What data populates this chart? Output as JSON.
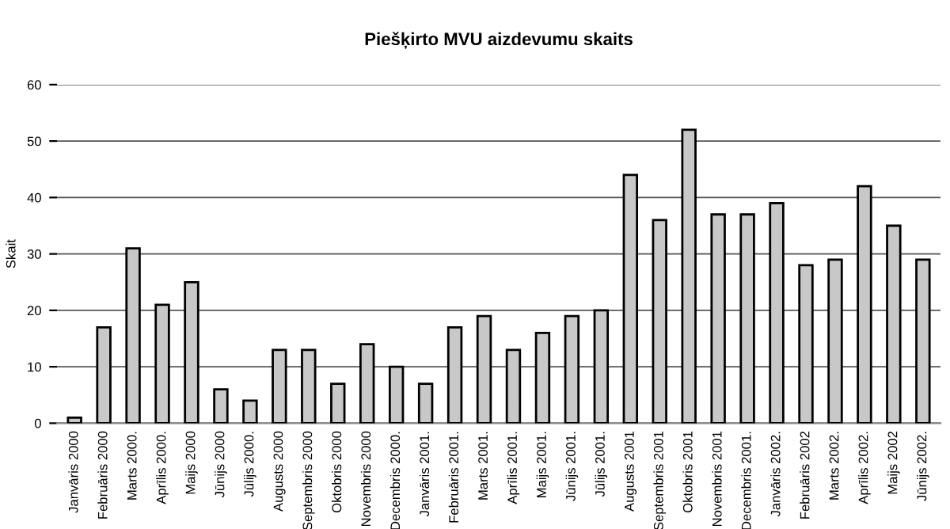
{
  "chart_data": {
    "type": "bar",
    "title": "Piešķirto MVU aizdevumu skaits",
    "ylabel": "Skait",
    "categories": [
      "Janvāris 2000",
      "Februāris 2000",
      "Marts 2000.",
      "Aprīlis 2000.",
      "Maijs 2000",
      "Jūnijs 2000",
      "Jūlijs 2000.",
      "Augusts 2000",
      "Septembris 2000",
      "Oktobris 2000",
      "Novembris 2000",
      "Decembris 2000.",
      "Janvāris 2001.",
      "Februāris 2001.",
      "Marts 2001.",
      "Aprīlis 2001.",
      "Maijs 2001.",
      "Jūnijs 2001.",
      "Jūlijs 2001.",
      "Augusts 2001",
      "Septembris 2001",
      "Oktobris 2001",
      "Novembris 2001",
      "Decembris 2001.",
      "Janvāris 2002.",
      "Februāris 2002",
      "Marts 2002.",
      "Aprīlis 2002.",
      "Maijs 2002",
      "Jūnijs 2002."
    ],
    "values": [
      1,
      17,
      31,
      21,
      25,
      6,
      4,
      13,
      13,
      7,
      14,
      10,
      7,
      17,
      19,
      13,
      16,
      19,
      20,
      44,
      36,
      52,
      37,
      37,
      39,
      28,
      29,
      42,
      35,
      29
    ],
    "color": "#c8c8c8",
    "ylim": [
      0,
      60
    ],
    "yticks": [
      0,
      10,
      20,
      30,
      40,
      50,
      60
    ],
    "grid": "y"
  }
}
